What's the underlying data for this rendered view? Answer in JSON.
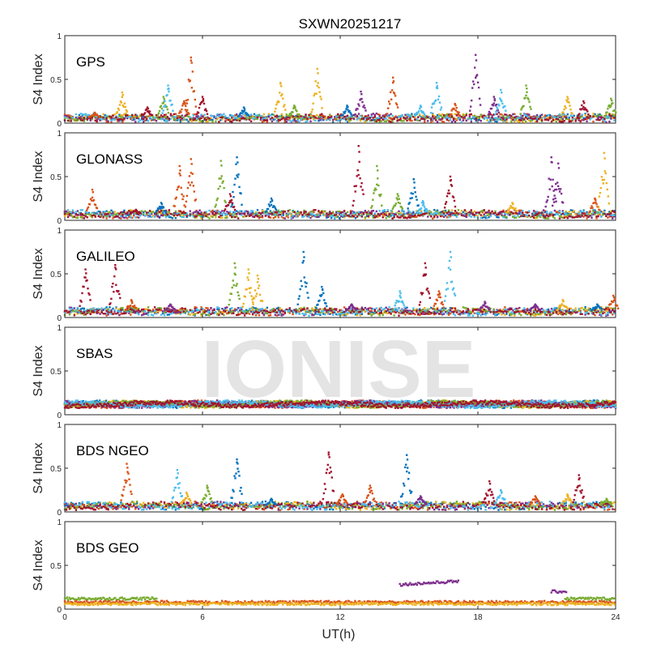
{
  "chart_data": {
    "type": "scatter",
    "title": "SXWN20251217",
    "xlabel": "UT(h)",
    "ylabel": "S4 Index",
    "xlim": [
      0,
      24
    ],
    "ylim": [
      0,
      1
    ],
    "x_ticks": [
      0,
      6,
      12,
      18,
      24
    ],
    "y_ticks": [
      0,
      0.5,
      1
    ],
    "y_tick_labels": [
      "0",
      "0.5",
      "1"
    ],
    "watermark": "IONISE",
    "palette": [
      "#0072BD",
      "#D95319",
      "#EDB120",
      "#7E2F8E",
      "#77AC30",
      "#4DBEEE",
      "#A2142F"
    ],
    "panels": [
      {
        "name": "GPS",
        "baseline": 0.06,
        "bursts": [
          [
            1.3,
            0.12,
            1
          ],
          [
            2.5,
            0.35,
            2
          ],
          [
            3.6,
            0.18,
            6
          ],
          [
            4.3,
            0.3,
            4
          ],
          [
            4.5,
            0.43,
            5
          ],
          [
            5.2,
            0.25,
            1
          ],
          [
            5.5,
            0.75,
            1
          ],
          [
            6.0,
            0.3,
            6
          ],
          [
            7.8,
            0.18,
            0
          ],
          [
            9.4,
            0.46,
            2
          ],
          [
            10.0,
            0.2,
            4
          ],
          [
            11.0,
            0.62,
            2
          ],
          [
            12.3,
            0.2,
            0
          ],
          [
            12.9,
            0.36,
            3
          ],
          [
            14.3,
            0.52,
            1
          ],
          [
            15.5,
            0.2,
            5
          ],
          [
            16.2,
            0.46,
            5
          ],
          [
            17.0,
            0.22,
            1
          ],
          [
            17.9,
            0.78,
            3
          ],
          [
            18.7,
            0.3,
            3
          ],
          [
            19.0,
            0.38,
            5
          ],
          [
            20.1,
            0.43,
            4
          ],
          [
            21.9,
            0.3,
            2
          ],
          [
            22.6,
            0.25,
            6
          ],
          [
            23.8,
            0.28,
            4
          ]
        ]
      },
      {
        "name": "GLONASS",
        "baseline": 0.07,
        "bursts": [
          [
            1.2,
            0.35,
            1
          ],
          [
            3.1,
            0.12,
            6
          ],
          [
            4.2,
            0.2,
            0
          ],
          [
            5.0,
            0.62,
            1
          ],
          [
            5.5,
            0.7,
            1
          ],
          [
            6.8,
            0.68,
            4
          ],
          [
            7.2,
            0.3,
            6
          ],
          [
            7.5,
            0.72,
            0
          ],
          [
            9.0,
            0.25,
            0
          ],
          [
            12.8,
            0.85,
            6
          ],
          [
            13.6,
            0.62,
            4
          ],
          [
            14.5,
            0.3,
            4
          ],
          [
            15.2,
            0.47,
            0
          ],
          [
            15.6,
            0.22,
            5
          ],
          [
            16.8,
            0.5,
            6
          ],
          [
            19.5,
            0.2,
            2
          ],
          [
            21.2,
            0.72,
            3
          ],
          [
            21.5,
            0.65,
            3
          ],
          [
            23.1,
            0.25,
            1
          ],
          [
            23.5,
            0.77,
            2
          ]
        ]
      },
      {
        "name": "GALILEO",
        "baseline": 0.07,
        "bursts": [
          [
            0.9,
            0.55,
            6
          ],
          [
            2.2,
            0.6,
            6
          ],
          [
            2.9,
            0.2,
            1
          ],
          [
            4.6,
            0.15,
            3
          ],
          [
            7.4,
            0.62,
            4
          ],
          [
            8.0,
            0.55,
            2
          ],
          [
            8.4,
            0.48,
            2
          ],
          [
            10.4,
            0.75,
            0
          ],
          [
            11.2,
            0.35,
            0
          ],
          [
            12.5,
            0.15,
            3
          ],
          [
            14.6,
            0.3,
            5
          ],
          [
            15.7,
            0.62,
            6
          ],
          [
            16.3,
            0.3,
            1
          ],
          [
            16.8,
            0.75,
            5
          ],
          [
            18.3,
            0.18,
            3
          ],
          [
            20.5,
            0.15,
            3
          ],
          [
            21.7,
            0.2,
            2
          ],
          [
            23.2,
            0.15,
            0
          ],
          [
            23.9,
            0.25,
            1
          ]
        ]
      },
      {
        "name": "SBAS",
        "baseline": 0.12,
        "bursts": []
      },
      {
        "name": "BDS NGEO",
        "baseline": 0.07,
        "bursts": [
          [
            2.7,
            0.55,
            1
          ],
          [
            4.9,
            0.48,
            5
          ],
          [
            5.3,
            0.22,
            2
          ],
          [
            6.2,
            0.3,
            4
          ],
          [
            7.5,
            0.6,
            0
          ],
          [
            9.0,
            0.15,
            0
          ],
          [
            11.5,
            0.68,
            6
          ],
          [
            12.1,
            0.2,
            1
          ],
          [
            13.3,
            0.3,
            1
          ],
          [
            14.9,
            0.65,
            0
          ],
          [
            15.5,
            0.18,
            3
          ],
          [
            18.5,
            0.35,
            6
          ],
          [
            19.0,
            0.25,
            5
          ],
          [
            20.5,
            0.18,
            1
          ],
          [
            21.9,
            0.2,
            2
          ],
          [
            22.4,
            0.42,
            6
          ],
          [
            23.6,
            0.15,
            4
          ]
        ]
      },
      {
        "name": "BDS GEO",
        "baseline": 0.07,
        "geo_tracks": [
          {
            "color": 4,
            "from": 0.0,
            "to": 4.0,
            "level": 0.12
          },
          {
            "color": 1,
            "from": 0.0,
            "to": 24.0,
            "level": 0.08
          },
          {
            "color": 2,
            "from": 0.0,
            "to": 24.0,
            "level": 0.06
          },
          {
            "color": 3,
            "from": 14.6,
            "to": 17.2,
            "level": 0.28
          },
          {
            "color": 3,
            "from": 21.2,
            "to": 21.9,
            "level": 0.2
          },
          {
            "color": 4,
            "from": 21.8,
            "to": 24.0,
            "level": 0.12
          }
        ]
      }
    ]
  }
}
